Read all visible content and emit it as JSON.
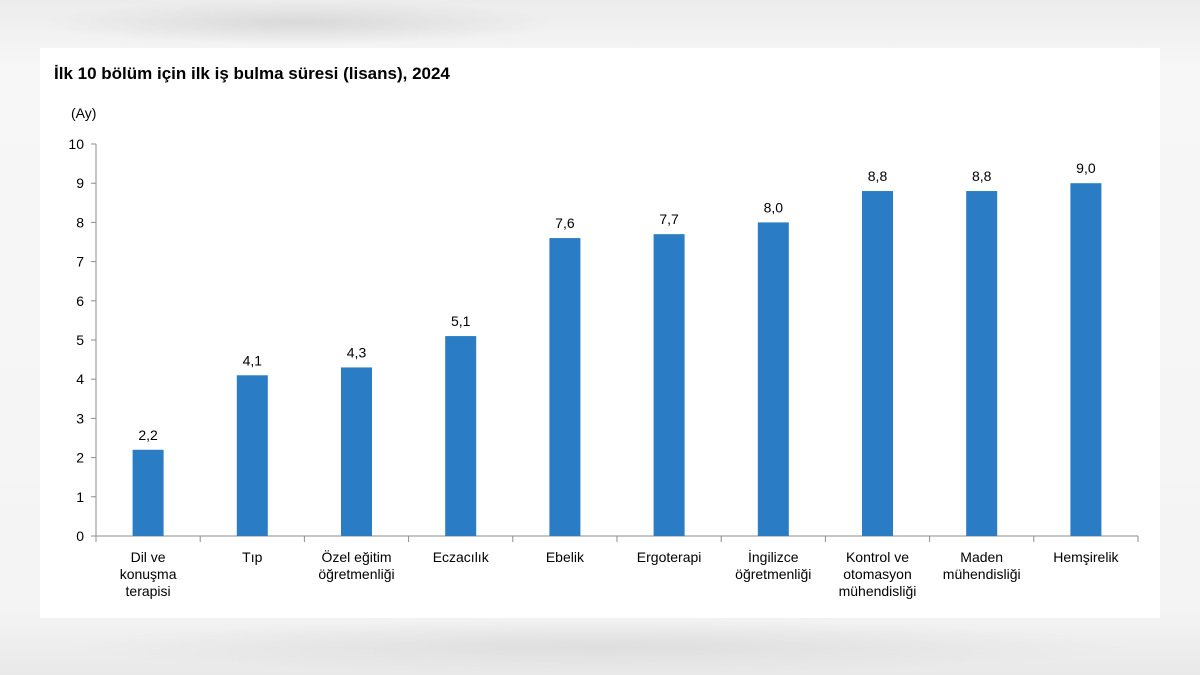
{
  "chart_data": {
    "type": "bar",
    "title": "İlk 10 bölüm için ilk iş bulma süresi (lisans), 2024",
    "ylabel": "(Ay)",
    "xlabel": "",
    "ylim": [
      0,
      10
    ],
    "yticks": [
      "0",
      "1",
      "2",
      "3",
      "4",
      "5",
      "6",
      "7",
      "8",
      "9",
      "10"
    ],
    "categories": [
      [
        "Dil ve",
        "konuşma",
        "terapisi"
      ],
      [
        "Tıp"
      ],
      [
        "Özel eğitim",
        "öğretmenliği"
      ],
      [
        "Eczacılık"
      ],
      [
        "Ebelik"
      ],
      [
        "Ergoterapi"
      ],
      [
        "İngilizce",
        "öğretmenliği"
      ],
      [
        "Kontrol ve",
        "otomasyon",
        "mühendisliği"
      ],
      [
        "Maden",
        "mühendisliği"
      ],
      [
        "Hemşirelik"
      ]
    ],
    "values": [
      2.2,
      4.1,
      4.3,
      5.1,
      7.6,
      7.7,
      8.0,
      8.8,
      8.8,
      9.0
    ],
    "value_labels": [
      "2,2",
      "4,1",
      "4,3",
      "5,1",
      "7,6",
      "7,7",
      "8,0",
      "8,8",
      "8,8",
      "9,0"
    ],
    "bar_color": "#2a7dc4",
    "grid": false,
    "legend": "none"
  }
}
